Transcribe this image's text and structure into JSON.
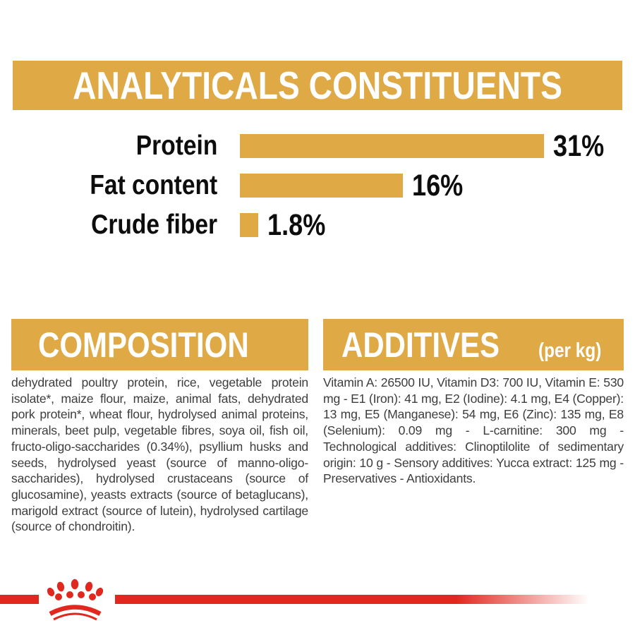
{
  "header": {
    "title": "ANALYTICALS CONSTITUENTS"
  },
  "chart_data": {
    "type": "bar",
    "orientation": "horizontal",
    "title": "ANALYTICALS CONSTITUENTS",
    "categories": [
      "Protein",
      "Fat content",
      "Crude fiber"
    ],
    "values": [
      31,
      16,
      1.8
    ],
    "value_labels": [
      "31%",
      "16%",
      "1.8%"
    ],
    "xlim": [
      0,
      31
    ],
    "grid": false,
    "legend": false,
    "bar_color": "#DFA945",
    "label_color": "#0d0d0d"
  },
  "composition": {
    "title": "COMPOSITION",
    "body": "dehydrated poultry protein, rice, vegetable protein isolate*, maize flour, maize, animal fats, dehydrated pork protein*, wheat flour, hydrolysed animal proteins, minerals, beet pulp, vegetable fibres, soya oil, fish oil, fructo-oligo-saccharides (0.34%), psyllium husks and seeds, hydrolysed yeast (source of manno-oligo-saccharides), hydrolysed crustaceans (source of glucosamine), yeasts extracts (source of betaglucans), marigold extract (source of lutein), hydrolysed cartilage (source of chondroitin)."
  },
  "additives": {
    "title": "ADDITIVES",
    "subtitle": "(per kg)",
    "body": "Vitamin A: 26500 IU, Vitamin D3: 700 IU, Vitamin E: 530 mg - E1 (Iron): 41 mg, E2 (Iodine): 4.1 mg, E4 (Copper): 13 mg, E5 (Manganese): 54 mg, E6 (Zinc): 135 mg, E8 (Selenium): 0.09 mg - L-carnitine: 300 mg - Technological additives: Clinoptilolite of sedimentary origin: 10 g - Sensory additives: Yucca extract: 125 mg - Preservatives - Antioxidants."
  },
  "footer": {
    "logo": "royal-canin-crown"
  },
  "colors": {
    "accent_gold": "#DFA945",
    "brand_red": "#E2281E",
    "body_text": "#3d3d3d",
    "heading_text": "#ffffff"
  }
}
